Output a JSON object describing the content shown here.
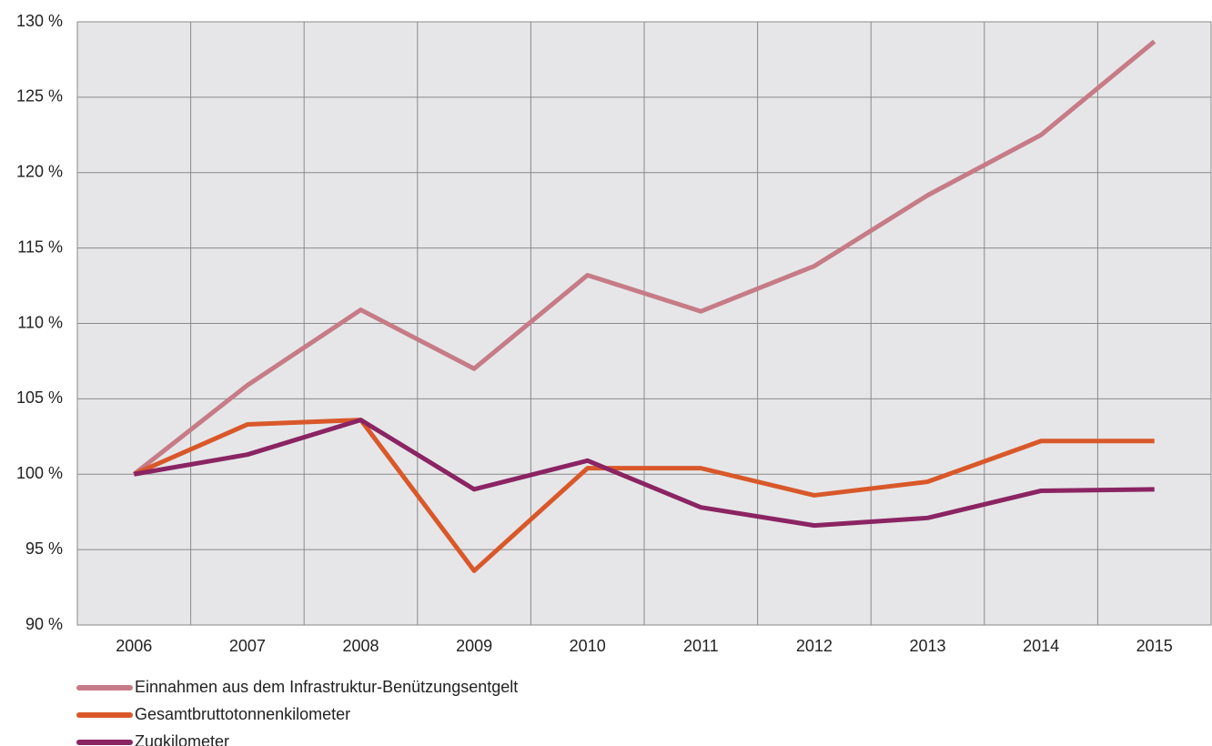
{
  "chart_data": {
    "type": "line",
    "categories": [
      "2006",
      "2007",
      "2008",
      "2009",
      "2010",
      "2011",
      "2012",
      "2013",
      "2014",
      "2015"
    ],
    "series": [
      {
        "name": "Einnahmen aus dem Infrastruktur-Benützungsentgelt",
        "color": "#c67b87",
        "values": [
          100,
          105.9,
          110.9,
          107.0,
          113.2,
          110.8,
          113.8,
          118.5,
          122.5,
          128.7
        ]
      },
      {
        "name": "Gesamtbruttotonnenkilometer",
        "color": "#d9582a",
        "values": [
          100,
          103.3,
          103.6,
          93.6,
          100.4,
          100.4,
          98.6,
          99.5,
          102.2,
          102.2
        ]
      },
      {
        "name": "Zugkilometer",
        "color": "#8b2463",
        "values": [
          100,
          101.3,
          103.6,
          99.0,
          100.9,
          97.8,
          96.6,
          97.1,
          98.9,
          99.0
        ]
      }
    ],
    "ylim": [
      90,
      130
    ],
    "yticks": [
      {
        "value": 90,
        "label": "90 %"
      },
      {
        "value": 95,
        "label": "95 %"
      },
      {
        "value": 100,
        "label": "100 %"
      },
      {
        "value": 105,
        "label": "105 %"
      },
      {
        "value": 110,
        "label": "110 %"
      },
      {
        "value": 115,
        "label": "115 %"
      },
      {
        "value": 120,
        "label": "120 %"
      },
      {
        "value": 125,
        "label": "125 %"
      },
      {
        "value": 130,
        "label": "130 %"
      }
    ],
    "grid": true,
    "legend": "bottom-left"
  }
}
